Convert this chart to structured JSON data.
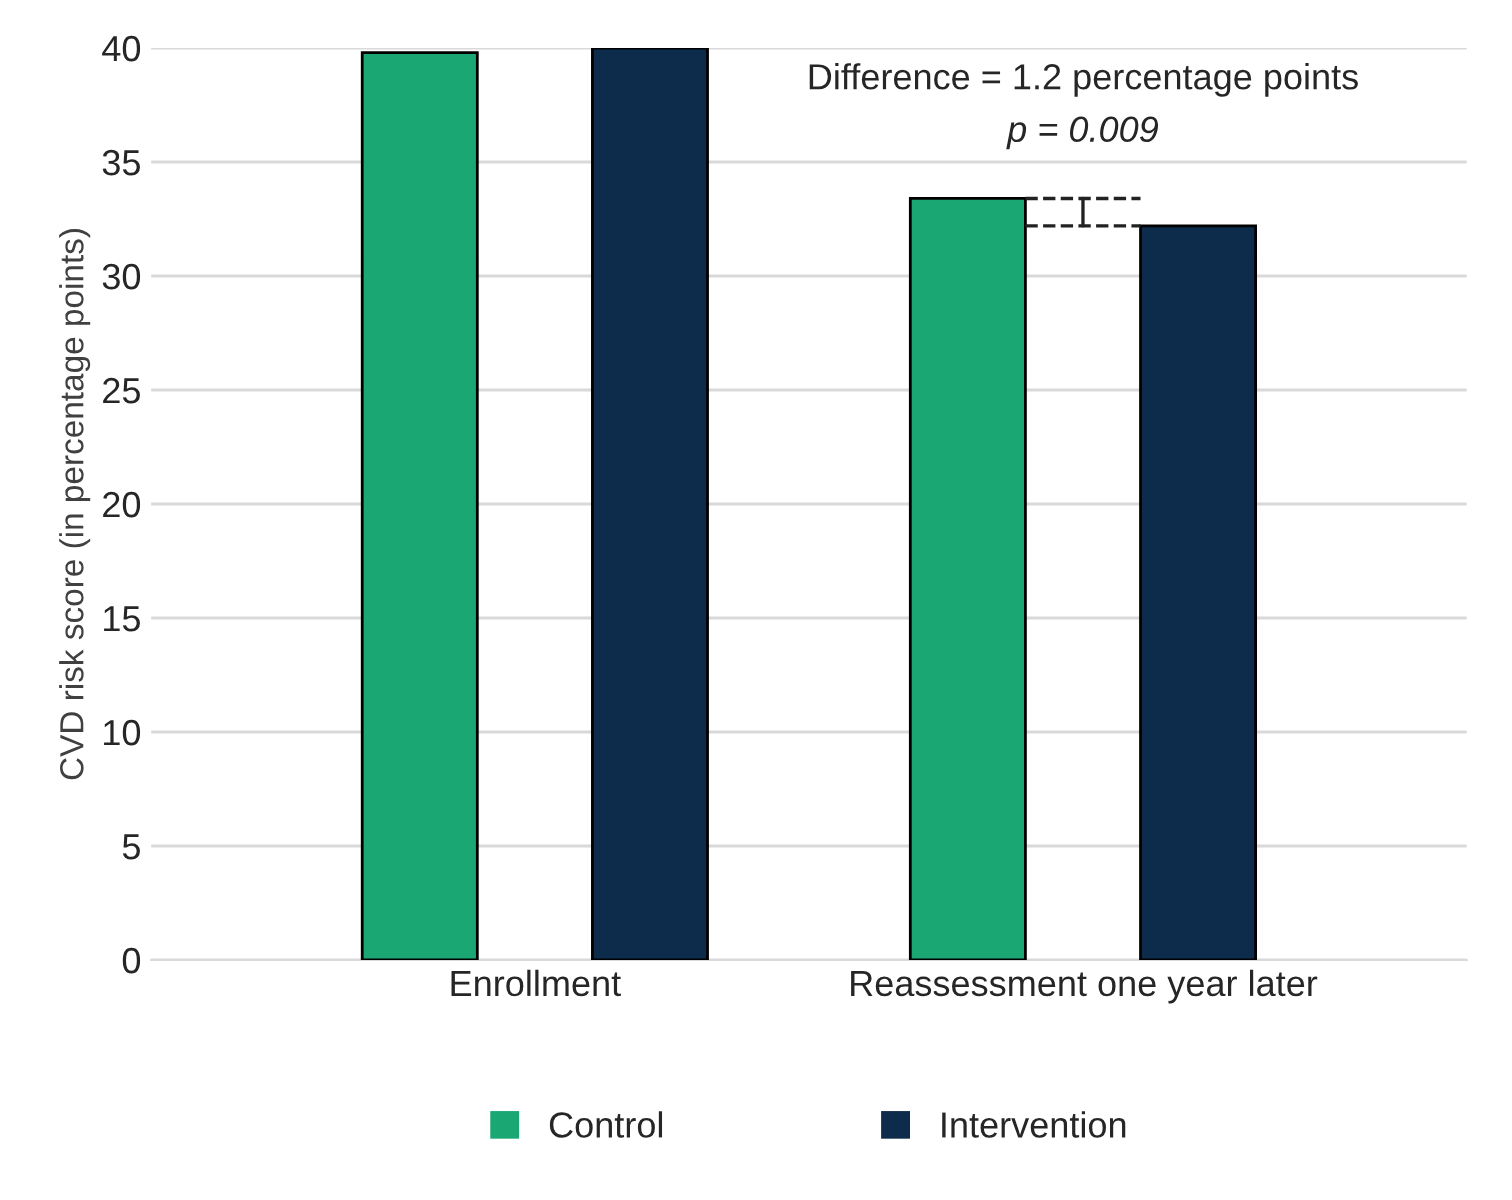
{
  "chart_data": {
    "type": "bar",
    "ylabel": "CVD risk score (in percentage points)",
    "categories": [
      "Enrollment",
      "Reassessment one year later"
    ],
    "series": [
      {
        "name": "Control",
        "color": "#1aa774",
        "values": [
          39.8,
          33.4
        ]
      },
      {
        "name": "Intervention",
        "color": "#0d2b4b",
        "values": [
          40,
          32.2
        ]
      }
    ],
    "ylim": [
      0,
      40
    ],
    "yticks": [
      0,
      5,
      10,
      15,
      20,
      25,
      30,
      35,
      40
    ],
    "grid": "y",
    "legend": "bottom",
    "annotations": [
      "Difference = 1.2 percentage points",
      "p = 0.009"
    ]
  }
}
